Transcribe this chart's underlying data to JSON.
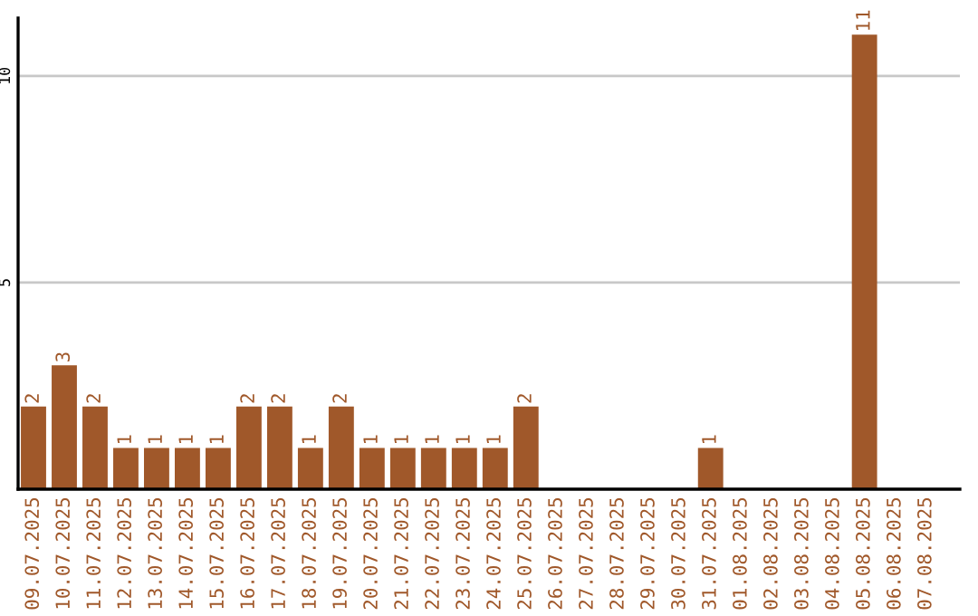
{
  "chart_data": {
    "type": "bar",
    "categories": [
      "09.07.2025",
      "10.07.2025",
      "11.07.2025",
      "12.07.2025",
      "13.07.2025",
      "14.07.2025",
      "15.07.2025",
      "16.07.2025",
      "17.07.2025",
      "18.07.2025",
      "19.07.2025",
      "20.07.2025",
      "21.07.2025",
      "22.07.2025",
      "23.07.2025",
      "24.07.2025",
      "25.07.2025",
      "26.07.2025",
      "27.07.2025",
      "28.07.2025",
      "29.07.2025",
      "30.07.2025",
      "31.07.2025",
      "01.08.2025",
      "02.08.2025",
      "03.08.2025",
      "04.08.2025",
      "05.08.2025",
      "06.08.2025",
      "07.08.2025"
    ],
    "values": [
      2,
      3,
      2,
      1,
      1,
      1,
      1,
      2,
      2,
      1,
      2,
      1,
      1,
      1,
      1,
      1,
      2,
      0,
      0,
      0,
      0,
      0,
      1,
      0,
      0,
      0,
      0,
      11,
      0,
      0
    ],
    "value_labels": [
      "2",
      "3",
      "2",
      "1",
      "1",
      "1",
      "1",
      "2",
      "2",
      "1",
      "2",
      "1",
      "1",
      "1",
      "1",
      "1",
      "2",
      null,
      null,
      null,
      null,
      null,
      "1",
      null,
      null,
      null,
      null,
      "11",
      null,
      null
    ],
    "color": "#a0582a",
    "ylim": [
      0,
      11.4
    ],
    "yticks": [
      5,
      10
    ],
    "grid": "y"
  }
}
